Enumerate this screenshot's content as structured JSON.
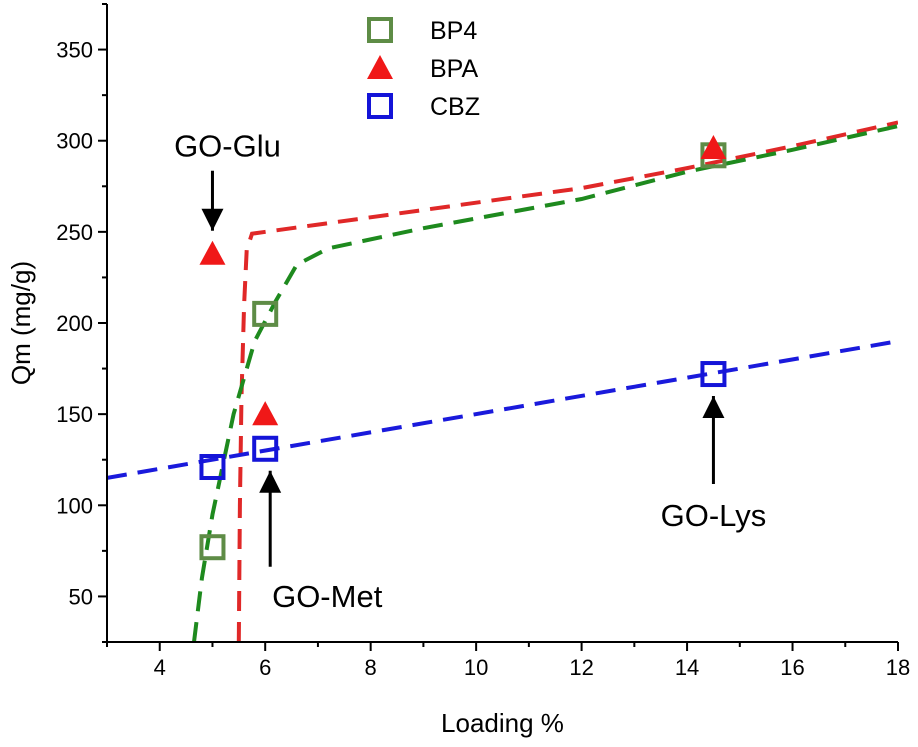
{
  "chart_data": {
    "type": "scatter",
    "xlabel": "Loading %",
    "ylabel": "Qm (mg/g)",
    "xlim": [
      3,
      18
    ],
    "ylim": [
      25,
      375
    ],
    "xticks": [
      4,
      6,
      8,
      10,
      12,
      14,
      16,
      18
    ],
    "yticks": [
      50,
      100,
      150,
      200,
      250,
      300,
      350
    ],
    "grid": false,
    "legend_position": "top-center",
    "series": [
      {
        "name": "BP4",
        "marker": "square-open",
        "color": "#5E8C46",
        "points": [
          {
            "x": 5.0,
            "y": 77
          },
          {
            "x": 6.0,
            "y": 205
          },
          {
            "x": 14.5,
            "y": 292
          }
        ]
      },
      {
        "name": "BPA",
        "marker": "triangle-filled",
        "color": "#F01818",
        "points": [
          {
            "x": 5.0,
            "y": 238
          },
          {
            "x": 6.0,
            "y": 150
          },
          {
            "x": 14.5,
            "y": 296
          }
        ]
      },
      {
        "name": "CBZ",
        "marker": "square-open",
        "color": "#1414D8",
        "points": [
          {
            "x": 5.0,
            "y": 121
          },
          {
            "x": 6.0,
            "y": 131
          },
          {
            "x": 14.5,
            "y": 172
          }
        ]
      }
    ],
    "fit_lines": [
      {
        "for": "BPA",
        "color": "#E02828",
        "style": "dashed",
        "points": [
          [
            5.5,
            25
          ],
          [
            5.52,
            100
          ],
          [
            5.55,
            160
          ],
          [
            5.6,
            210
          ],
          [
            5.65,
            240
          ],
          [
            5.75,
            249
          ],
          [
            7,
            254
          ],
          [
            10,
            266
          ],
          [
            12,
            274
          ],
          [
            14,
            285
          ],
          [
            16,
            297
          ],
          [
            18,
            310
          ]
        ]
      },
      {
        "for": "BP4",
        "color": "#1E8A1E",
        "style": "dashed",
        "points": [
          [
            4.65,
            25
          ],
          [
            4.8,
            60
          ],
          [
            5.0,
            95
          ],
          [
            5.4,
            150
          ],
          [
            5.8,
            190
          ],
          [
            6.2,
            212
          ],
          [
            6.6,
            232
          ],
          [
            7.2,
            241
          ],
          [
            9,
            252
          ],
          [
            12,
            268
          ],
          [
            14,
            283
          ],
          [
            16,
            295
          ],
          [
            18,
            308
          ]
        ]
      },
      {
        "for": "CBZ",
        "color": "#1A1ADC",
        "style": "dashed",
        "points": [
          [
            3,
            115
          ],
          [
            18,
            190
          ]
        ]
      }
    ],
    "annotations": [
      {
        "text": "GO-Glu",
        "arrow_target": {
          "x": 5.0,
          "y": 238
        },
        "arrow": "down"
      },
      {
        "text": "GO-Met",
        "arrow_target": {
          "x": 6.0,
          "y": 131
        },
        "arrow": "up"
      },
      {
        "text": "GO-Lys",
        "arrow_target": {
          "x": 14.5,
          "y": 172
        },
        "arrow": "up"
      }
    ]
  }
}
